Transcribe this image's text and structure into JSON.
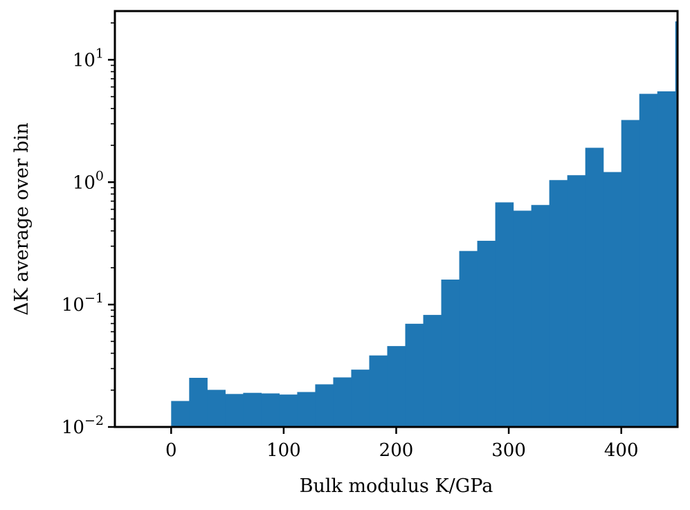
{
  "chart_data": {
    "type": "bar",
    "xlabel": "Bulk modulus K/GPa",
    "ylabel": "ΔK average over bin",
    "yscale": "log",
    "xlim": [
      -50,
      450
    ],
    "ylim": [
      0.01,
      25
    ],
    "grid": false,
    "legend": "none",
    "bar_color": "#1f77b4",
    "x_ticks": [
      {
        "value": 0,
        "label": "0"
      },
      {
        "value": 100,
        "label": "100"
      },
      {
        "value": 200,
        "label": "200"
      },
      {
        "value": 300,
        "label": "300"
      },
      {
        "value": 400,
        "label": "400"
      }
    ],
    "y_ticks": [
      {
        "value": 0.01,
        "base": "10",
        "exp": "−2"
      },
      {
        "value": 0.1,
        "base": "10",
        "exp": "−1"
      },
      {
        "value": 1,
        "base": "10",
        "exp": "0"
      },
      {
        "value": 10,
        "base": "10",
        "exp": "1"
      }
    ],
    "bins": [
      {
        "x0": 0,
        "x1": 16,
        "value": 0.0163
      },
      {
        "x0": 16,
        "x1": 32,
        "value": 0.0252
      },
      {
        "x0": 32,
        "x1": 48,
        "value": 0.0201
      },
      {
        "x0": 48,
        "x1": 64,
        "value": 0.0186
      },
      {
        "x0": 64,
        "x1": 80,
        "value": 0.019
      },
      {
        "x0": 80,
        "x1": 96,
        "value": 0.0188
      },
      {
        "x0": 96,
        "x1": 112,
        "value": 0.0184
      },
      {
        "x0": 112,
        "x1": 128,
        "value": 0.0193
      },
      {
        "x0": 128,
        "x1": 144,
        "value": 0.0223
      },
      {
        "x0": 144,
        "x1": 160,
        "value": 0.0254
      },
      {
        "x0": 160,
        "x1": 176,
        "value": 0.0294
      },
      {
        "x0": 176,
        "x1": 192,
        "value": 0.0384
      },
      {
        "x0": 192,
        "x1": 208,
        "value": 0.0458
      },
      {
        "x0": 208,
        "x1": 224,
        "value": 0.0697
      },
      {
        "x0": 224,
        "x1": 240,
        "value": 0.0823
      },
      {
        "x0": 240,
        "x1": 256,
        "value": 0.16
      },
      {
        "x0": 256,
        "x1": 272,
        "value": 0.274
      },
      {
        "x0": 272,
        "x1": 288,
        "value": 0.332
      },
      {
        "x0": 288,
        "x1": 304,
        "value": 0.684
      },
      {
        "x0": 304,
        "x1": 320,
        "value": 0.585
      },
      {
        "x0": 320,
        "x1": 336,
        "value": 0.651
      },
      {
        "x0": 336,
        "x1": 352,
        "value": 1.04
      },
      {
        "x0": 352,
        "x1": 368,
        "value": 1.14
      },
      {
        "x0": 368,
        "x1": 384,
        "value": 1.91
      },
      {
        "x0": 384,
        "x1": 400,
        "value": 1.21
      },
      {
        "x0": 400,
        "x1": 416,
        "value": 3.22
      },
      {
        "x0": 416,
        "x1": 432,
        "value": 5.27
      },
      {
        "x0": 432,
        "x1": 448,
        "value": 5.52
      },
      {
        "x0": 448,
        "x1": 450,
        "value": 20.6
      }
    ]
  }
}
